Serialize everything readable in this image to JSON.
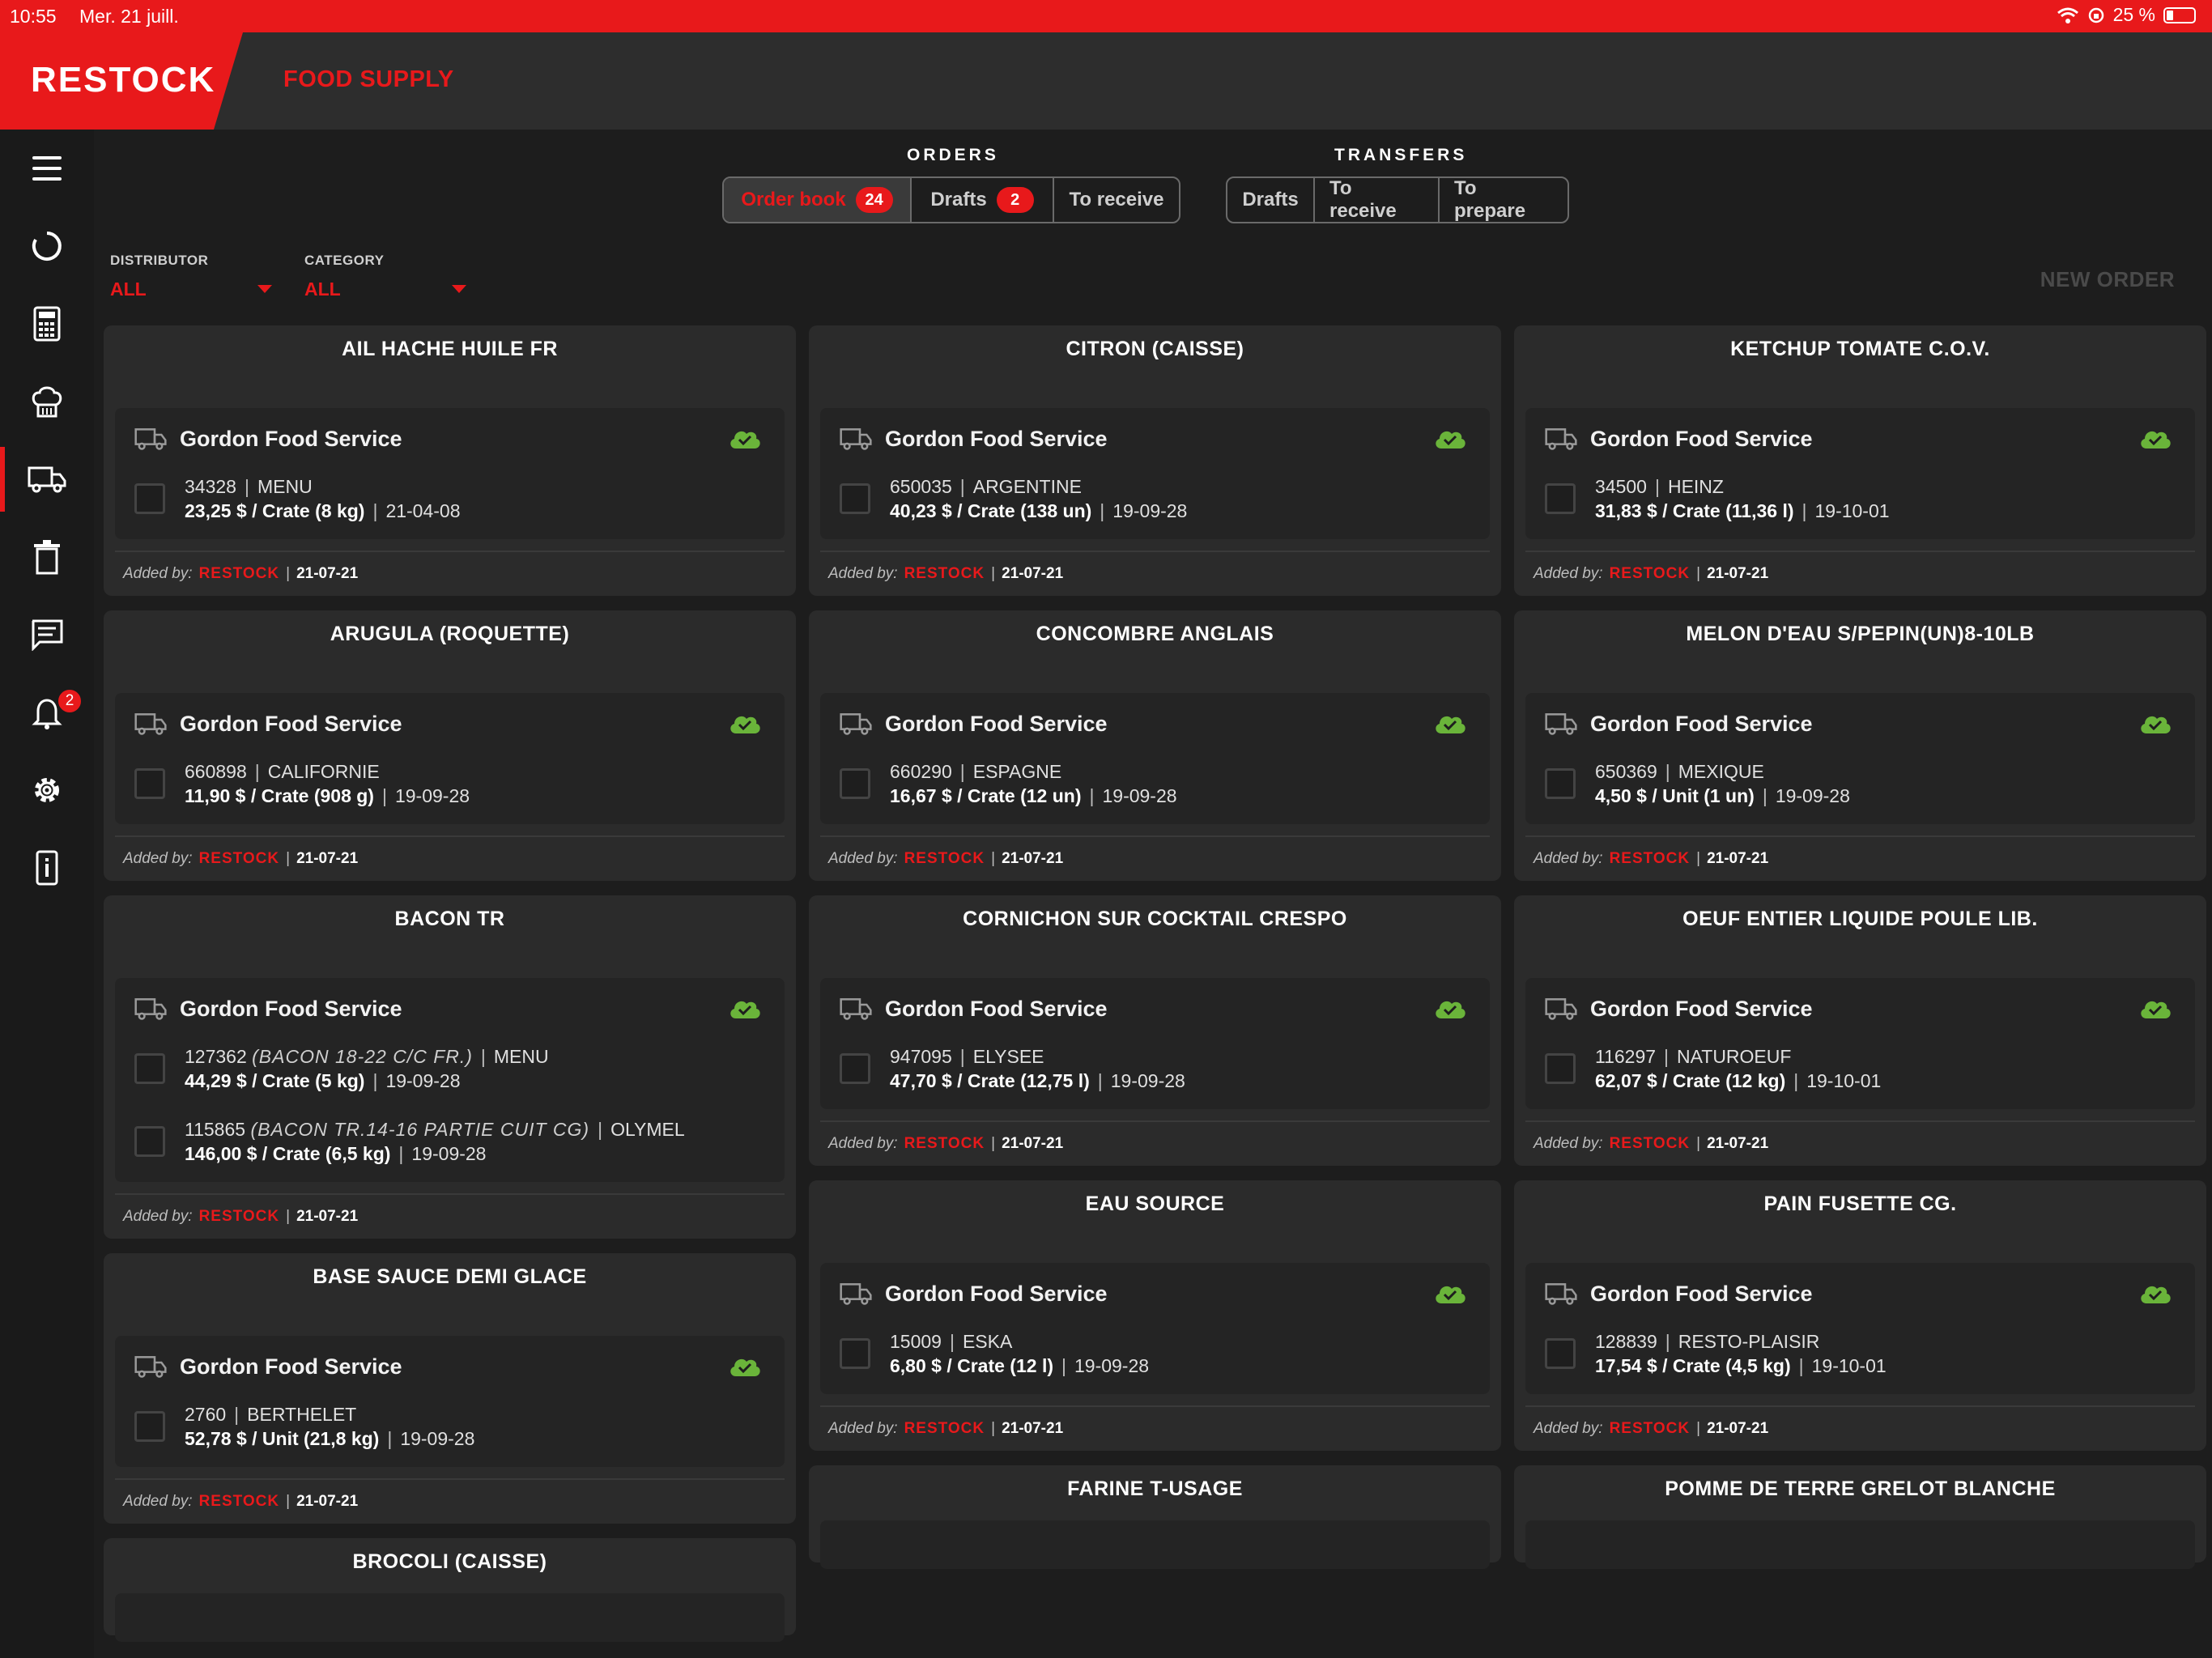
{
  "status_bar": {
    "time": "10:55",
    "date": "Mer. 21 juill.",
    "battery": "25 %"
  },
  "header": {
    "logo": "RESTOCK",
    "subtitle": "FOOD SUPPLY"
  },
  "sidebar": {
    "notifications_badge": "2"
  },
  "orders": {
    "title": "ORDERS",
    "tabs": [
      {
        "label": "Order book",
        "count": "24"
      },
      {
        "label": "Drafts",
        "count": "2"
      },
      {
        "label": "To receive"
      }
    ]
  },
  "transfers": {
    "title": "TRANSFERS",
    "tabs": [
      {
        "label": "Drafts"
      },
      {
        "label": "To receive"
      },
      {
        "label": "To prepare"
      }
    ]
  },
  "filters": {
    "distributor": {
      "label": "DISTRIBUTOR",
      "value": "ALL"
    },
    "category": {
      "label": "CATEGORY",
      "value": "ALL"
    }
  },
  "new_order": "NEW ORDER",
  "added_by_label": "Added by:",
  "added_by_brand": "RESTOCK",
  "cards": [
    {
      "title": "AIL HACHE HUILE FR",
      "supplier": "Gordon Food Service",
      "items": [
        {
          "code": "34328",
          "origin": "MENU",
          "price": "23,25 $ / Crate (8 kg)",
          "date": "21-04-08"
        }
      ],
      "added_date": "21-07-21"
    },
    {
      "title": "CITRON (CAISSE)",
      "supplier": "Gordon Food Service",
      "items": [
        {
          "code": "650035",
          "origin": "ARGENTINE",
          "price": "40,23 $ / Crate (138 un)",
          "date": "19-09-28"
        }
      ],
      "added_date": "21-07-21"
    },
    {
      "title": "KETCHUP TOMATE C.O.V.",
      "supplier": "Gordon Food Service",
      "items": [
        {
          "code": "34500",
          "origin": "HEINZ",
          "price": "31,83 $ / Crate (11,36 l)",
          "date": "19-10-01"
        }
      ],
      "added_date": "21-07-21"
    },
    {
      "title": "ARUGULA (ROQUETTE)",
      "supplier": "Gordon Food Service",
      "items": [
        {
          "code": "660898",
          "origin": "CALIFORNIE",
          "price": "11,90 $ / Crate (908 g)",
          "date": "19-09-28"
        }
      ],
      "added_date": "21-07-21"
    },
    {
      "title": "CONCOMBRE ANGLAIS",
      "supplier": "Gordon Food Service",
      "items": [
        {
          "code": "660290",
          "origin": "ESPAGNE",
          "price": "16,67 $ / Crate (12 un)",
          "date": "19-09-28"
        }
      ],
      "added_date": "21-07-21"
    },
    {
      "title": "MELON D'EAU S/PEPIN(UN)8-10LB",
      "supplier": "Gordon Food Service",
      "items": [
        {
          "code": "650369",
          "origin": "MEXIQUE",
          "price": "4,50 $ / Unit (1 un)",
          "date": "19-09-28"
        }
      ],
      "added_date": "21-07-21"
    },
    {
      "title": "BACON TR",
      "supplier": "Gordon Food Service",
      "items": [
        {
          "code": "127362",
          "desc": "(BACON 18-22 C/C FR.)",
          "origin": "MENU",
          "price": "44,29 $ / Crate (5 kg)",
          "date": "19-09-28"
        },
        {
          "code": "115865",
          "desc": "(BACON TR.14-16 PARTIE CUIT CG)",
          "origin": "OLYMEL",
          "price": "146,00 $ / Crate (6,5 kg)",
          "date": "19-09-28"
        }
      ],
      "added_date": "21-07-21"
    },
    {
      "title": "CORNICHON SUR COCKTAIL CRESPO",
      "supplier": "Gordon Food Service",
      "items": [
        {
          "code": "947095",
          "origin": "ELYSEE",
          "price": "47,70 $ / Crate (12,75 l)",
          "date": "19-09-28"
        }
      ],
      "added_date": "21-07-21"
    },
    {
      "title": "OEUF ENTIER LIQUIDE POULE LIB.",
      "supplier": "Gordon Food Service",
      "items": [
        {
          "code": "116297",
          "origin": "NATUROEUF",
          "price": "62,07 $ / Crate (12 kg)",
          "date": "19-10-01"
        }
      ],
      "added_date": "21-07-21"
    },
    {
      "title": "BASE SAUCE DEMI GLACE",
      "supplier": "Gordon Food Service",
      "items": [
        {
          "code": "2760",
          "origin": "BERTHELET",
          "price": "52,78 $ / Unit (21,8 kg)",
          "date": "19-09-28"
        }
      ],
      "added_date": "21-07-21"
    },
    {
      "title": "EAU SOURCE",
      "supplier": "Gordon Food Service",
      "items": [
        {
          "code": "15009",
          "origin": "ESKA",
          "price": "6,80 $ / Crate (12 l)",
          "date": "19-09-28"
        }
      ],
      "added_date": "21-07-21"
    },
    {
      "title": "PAIN FUSETTE CG.",
      "supplier": "Gordon Food Service",
      "items": [
        {
          "code": "128839",
          "origin": "RESTO-PLAISIR",
          "price": "17,54 $ / Crate (4,5 kg)",
          "date": "19-10-01"
        }
      ],
      "added_date": "21-07-21"
    },
    {
      "title": "BROCOLI (CAISSE)"
    },
    {
      "title": "FARINE T-USAGE"
    },
    {
      "title": "POMME DE TERRE GRELOT BLANCHE"
    }
  ]
}
